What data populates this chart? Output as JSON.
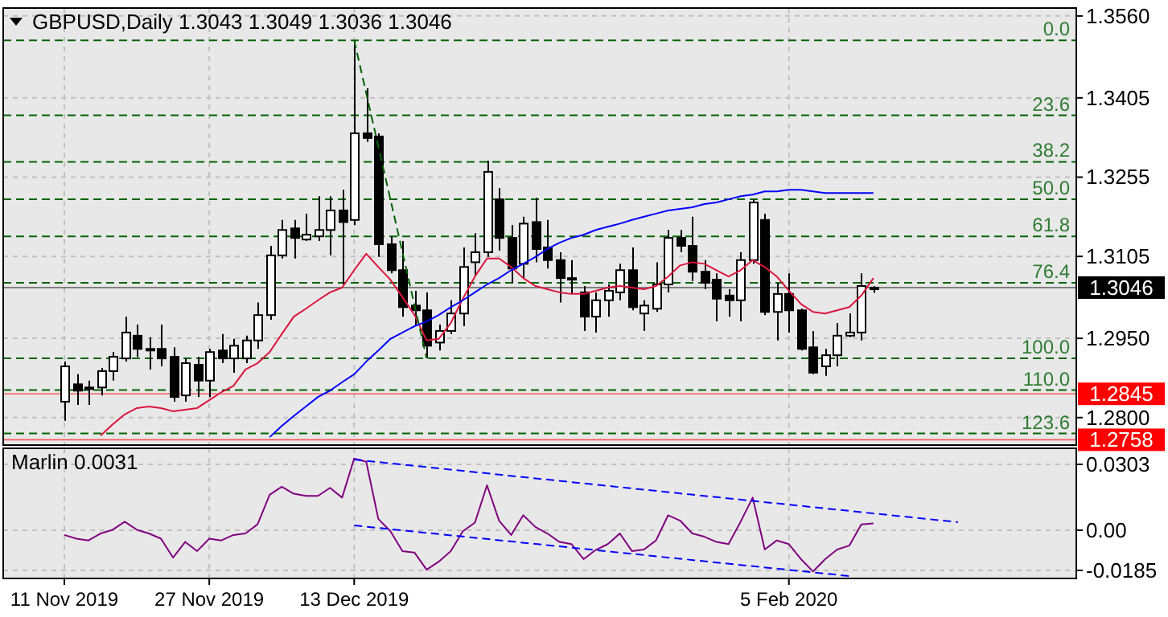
{
  "chart_data": [
    {
      "type": "candlestick",
      "title": "GBPUSD,Daily  1.3043 1.3049 1.3036 1.3046",
      "categories": [
        null,
        null,
        null,
        null,
        null,
        null,
        null,
        null,
        null,
        null,
        null,
        null,
        null,
        null,
        null,
        null,
        null,
        null,
        null,
        null,
        null,
        null,
        null,
        null,
        null,
        null,
        null,
        null,
        null,
        null,
        null,
        null,
        null,
        null,
        null,
        null,
        null,
        null,
        null,
        null,
        null,
        null,
        null,
        null,
        null,
        null,
        null,
        null,
        null,
        null,
        null,
        null,
        null,
        null,
        null,
        null,
        null,
        null,
        null,
        null,
        null,
        null,
        null,
        null,
        null,
        null,
        null,
        null,
        null,
        null,
        null,
        null,
        null,
        null,
        null,
        null,
        null,
        null,
        null,
        null,
        null,
        null,
        null,
        null
      ],
      "ohlc": [
        [
          1.283,
          1.2906,
          1.2794,
          1.2897
        ],
        [
          1.2863,
          1.2882,
          1.2824,
          1.2851
        ],
        [
          1.2857,
          1.287,
          1.2824,
          1.2854
        ],
        [
          1.2857,
          1.2894,
          1.2842,
          1.2888
        ],
        [
          1.2888,
          1.2924,
          1.287,
          1.2915
        ],
        [
          1.2912,
          1.2991,
          1.2906,
          1.2961
        ],
        [
          1.2955,
          1.2976,
          1.2915,
          1.293
        ],
        [
          1.293,
          1.2952,
          1.2891,
          1.2927
        ],
        [
          1.293,
          1.2976,
          1.2897,
          1.2912
        ],
        [
          1.2915,
          1.2933,
          1.283,
          1.2839
        ],
        [
          1.2842,
          1.2912,
          1.283,
          1.2903
        ],
        [
          1.29,
          1.2915,
          1.2839,
          1.287
        ],
        [
          1.287,
          1.293,
          1.2839,
          1.2924
        ],
        [
          1.2927,
          1.2958,
          1.2903,
          1.2912
        ],
        [
          1.2912,
          1.2949,
          1.2885,
          1.2936
        ],
        [
          1.2912,
          1.2955,
          1.2903,
          1.2946
        ],
        [
          1.2946,
          1.3018,
          1.293,
          1.2994
        ],
        [
          1.2994,
          1.3125,
          1.2985,
          1.3107
        ],
        [
          1.3107,
          1.3174,
          1.3101,
          1.3155
        ],
        [
          1.3158,
          1.3174,
          1.3101,
          1.314
        ],
        [
          1.3137,
          1.3186,
          1.3134,
          1.3146
        ],
        [
          1.3143,
          1.3219,
          1.3134,
          1.3155
        ],
        [
          1.3155,
          1.3219,
          1.3107,
          1.3192
        ],
        [
          1.3192,
          1.3231,
          1.3052,
          1.317
        ],
        [
          1.3174,
          1.3514,
          1.3164,
          1.3338
        ],
        [
          1.3338,
          1.3423,
          1.3322,
          1.3329
        ],
        [
          1.3332,
          1.3338,
          1.3104,
          1.3128
        ],
        [
          1.3128,
          1.3143,
          1.3073,
          1.3079
        ],
        [
          1.3079,
          1.3134,
          1.2991,
          1.3009
        ],
        [
          1.3012,
          1.304,
          1.2973,
          1.3003
        ],
        [
          1.3003,
          1.3037,
          1.2912,
          1.2936
        ],
        [
          1.2942,
          1.2976,
          1.2927,
          1.2964
        ],
        [
          1.2964,
          1.3022,
          1.2958,
          1.2997
        ],
        [
          1.2997,
          1.3122,
          1.2973,
          1.3085
        ],
        [
          1.3094,
          1.3149,
          1.3067,
          1.3113
        ],
        [
          1.3113,
          1.3286,
          1.3104,
          1.3265
        ],
        [
          1.3213,
          1.3234,
          1.3116,
          1.314
        ],
        [
          1.314,
          1.3164,
          1.3055,
          1.3082
        ],
        [
          1.3091,
          1.318,
          1.3064,
          1.3167
        ],
        [
          1.317,
          1.3216,
          1.3094,
          1.3119
        ],
        [
          1.3122,
          1.3174,
          1.3082,
          1.3098
        ],
        [
          1.3098,
          1.3113,
          1.3018,
          1.3064
        ],
        [
          1.3064,
          1.3098,
          1.3034,
          1.3061
        ],
        [
          1.3037,
          1.3049,
          1.2964,
          1.2991
        ],
        [
          1.2991,
          1.3037,
          1.2961,
          1.3022
        ],
        [
          1.3022,
          1.3052,
          1.2991,
          1.304
        ],
        [
          1.3037,
          1.3091,
          1.3022,
          1.3079
        ],
        [
          1.3079,
          1.3122,
          1.3003,
          1.3009
        ],
        [
          1.2997,
          1.3022,
          1.2964,
          1.3012
        ],
        [
          1.3006,
          1.3094,
          1.3,
          1.3052
        ],
        [
          1.3052,
          1.3155,
          1.3037,
          1.314
        ],
        [
          1.314,
          1.3155,
          1.3113,
          1.3125
        ],
        [
          1.3125,
          1.318,
          1.3058,
          1.3076
        ],
        [
          1.3076,
          1.3098,
          1.3043,
          1.3055
        ],
        [
          1.3061,
          1.3073,
          1.2982,
          1.3025
        ],
        [
          1.3031,
          1.3043,
          1.2991,
          1.3022
        ],
        [
          1.3022,
          1.3113,
          1.2982,
          1.3098
        ],
        [
          1.3098,
          1.3213,
          1.3091,
          1.3207
        ],
        [
          1.3174,
          1.3186,
          1.2994,
          1.3
        ],
        [
          1.3,
          1.3055,
          1.2946,
          1.3034
        ],
        [
          1.3034,
          1.3073,
          1.2961,
          1.3003
        ],
        [
          1.3003,
          1.3006,
          1.2927,
          1.293
        ],
        [
          1.2933,
          1.2964,
          1.2882,
          1.2885
        ],
        [
          1.2897,
          1.293,
          1.2879,
          1.2918
        ],
        [
          1.2918,
          1.2979,
          1.2897,
          1.2955
        ],
        [
          1.2955,
          1.2997,
          1.2952,
          1.2961
        ],
        [
          1.2961,
          1.3073,
          1.2946,
          1.3049
        ],
        [
          1.3043,
          1.3049,
          1.3036,
          1.3046
        ],
        null,
        null,
        null,
        null,
        null,
        null,
        null,
        null,
        null,
        null,
        null,
        null,
        null,
        null,
        null,
        null
      ],
      "series": [
        {
          "type": "line",
          "color": "#dc143c",
          "values": [
            null,
            null,
            null,
            1.2766,
            1.2787,
            1.2806,
            1.2818,
            1.2821,
            1.2818,
            1.2812,
            1.2815,
            1.2818,
            1.2833,
            1.2848,
            1.286,
            1.2891,
            1.2903,
            1.2924,
            1.2958,
            1.2991,
            1.3006,
            1.3022,
            1.3037,
            1.3046,
            1.3079,
            1.311,
            1.3085,
            1.3061,
            1.3028,
            1.2994,
            1.2946,
            1.2949,
            1.2979,
            1.3025,
            1.3067,
            1.3101,
            1.3101,
            1.3085,
            1.3064,
            1.3049,
            1.3043,
            1.3037,
            1.3034,
            1.3034,
            1.304,
            1.3046,
            1.3049,
            1.3046,
            1.3043,
            1.3049,
            1.3067,
            1.3088,
            1.3094,
            1.3091,
            1.3079,
            1.3067,
            1.3079,
            1.3098,
            1.3085,
            1.3067,
            1.304,
            1.3015,
            1.3,
            1.2997,
            1.3003,
            1.3009,
            1.3031,
            1.3064,
            null,
            null,
            null,
            null,
            null,
            null,
            null,
            null,
            null,
            null,
            null,
            null,
            null,
            null,
            null,
            null
          ]
        },
        {
          "type": "line",
          "color": "#0000ff",
          "values": [
            null,
            null,
            null,
            null,
            null,
            null,
            null,
            null,
            null,
            null,
            null,
            null,
            null,
            null,
            null,
            null,
            null,
            1.2763,
            1.2784,
            1.2803,
            1.2821,
            1.2839,
            1.2851,
            1.2867,
            1.2882,
            1.2906,
            1.2927,
            1.2949,
            1.2961,
            1.2973,
            1.2982,
            1.2994,
            1.3009,
            1.3022,
            1.3037,
            1.3052,
            1.3064,
            1.3079,
            1.3091,
            1.3104,
            1.3119,
            1.3131,
            1.314,
            1.3146,
            1.3155,
            1.3161,
            1.3167,
            1.3174,
            1.318,
            1.3186,
            1.3192,
            1.3195,
            1.3198,
            1.3204,
            1.3207,
            1.3213,
            1.3219,
            1.3222,
            1.3228,
            1.3228,
            1.3231,
            1.3231,
            1.3228,
            1.3225,
            1.3225,
            1.3225,
            1.3225,
            1.3225,
            null,
            null,
            null,
            null,
            null,
            null,
            null,
            null,
            null,
            null,
            null,
            null,
            null,
            null,
            null,
            null
          ]
        },
        {
          "type": "line",
          "color": "#006400",
          "line_style": "dashed",
          "values": [
            null,
            null,
            null,
            null,
            null,
            null,
            null,
            null,
            null,
            null,
            null,
            null,
            null,
            null,
            null,
            null,
            null,
            null,
            null,
            null,
            null,
            null,
            null,
            null,
            1.3514,
            null,
            null,
            null,
            null,
            null,
            1.2912,
            null,
            null,
            null,
            null,
            null,
            null,
            null,
            null,
            null,
            null,
            null,
            null,
            null,
            null,
            null,
            null,
            null,
            null,
            null,
            null,
            null,
            null,
            null,
            null,
            null,
            null,
            null,
            null,
            null,
            null,
            null,
            null,
            null,
            null,
            null,
            null,
            null,
            null,
            null,
            null,
            null,
            null,
            null,
            null,
            null,
            null,
            null,
            null,
            null,
            null,
            null,
            null,
            null
          ]
        }
      ],
      "ylim": [
        1.2748,
        1.3575
      ],
      "yticks": [
        {
          "value": 1.356,
          "label": "1.3560"
        },
        1.3405,
        1.3255,
        1.3105,
        {
          "value": 1.295,
          "label": "1.2950"
        },
        {
          "value": 1.28,
          "label": "1.2800"
        }
      ],
      "grid": true,
      "tick_labels": "y",
      "ref_lines": [
        {
          "axis": "y",
          "value": 1.3514,
          "color": "#006400",
          "line_style": "dashed"
        },
        {
          "axis": "y",
          "value": 1.3372,
          "color": "#006400",
          "line_style": "dashed"
        },
        {
          "axis": "y",
          "value": 1.3284,
          "color": "#006400",
          "line_style": "dashed"
        },
        {
          "axis": "y",
          "value": 1.3213,
          "color": "#006400",
          "line_style": "dashed"
        },
        {
          "axis": "y",
          "value": 1.3143,
          "color": "#006400",
          "line_style": "dashed"
        },
        {
          "axis": "y",
          "value": 1.3055,
          "color": "#006400",
          "line_style": "dashed"
        },
        {
          "axis": "y",
          "value": 1.2912,
          "color": "#006400",
          "line_style": "dashed"
        },
        {
          "axis": "y",
          "value": 1.2852,
          "color": "#006400",
          "line_style": "dashed"
        },
        {
          "axis": "y",
          "value": 1.277,
          "color": "#006400",
          "line_style": "dashed"
        },
        {
          "axis": "y",
          "value": 1.3046,
          "label": "1.3046",
          "color": "#000000",
          "line_style": "solid"
        },
        {
          "axis": "y",
          "value": 1.2845,
          "label": "1.2845",
          "color": "#ff0000",
          "line_style": "solid"
        },
        {
          "axis": "y",
          "value": 1.2758,
          "label": "1.2758",
          "color": "#ff0000",
          "line_style": "solid"
        }
      ],
      "annotations": [
        {
          "text": "0.0",
          "y": 1.3514
        },
        {
          "text": "23.6",
          "y": 1.3372
        },
        {
          "text": "38.2",
          "y": 1.3284
        },
        {
          "text": "50.0",
          "y": 1.3213
        },
        {
          "text": "61.8",
          "y": 1.3143
        },
        {
          "text": "76.4",
          "y": 1.3055
        },
        {
          "text": "100.0",
          "y": 1.2912
        },
        {
          "text": "110.0",
          "y": 1.2852
        },
        {
          "text": "123.6",
          "y": 1.277
        }
      ]
    },
    {
      "type": "line",
      "title": "Marlin 0.0031",
      "categories": [
        "11 Nov 2019",
        null,
        null,
        null,
        null,
        null,
        null,
        null,
        null,
        null,
        null,
        null,
        "27 Nov 2019",
        null,
        null,
        null,
        null,
        null,
        null,
        null,
        null,
        null,
        null,
        null,
        "13 Dec 2019",
        null,
        null,
        null,
        null,
        null,
        null,
        null,
        null,
        null,
        null,
        null,
        null,
        null,
        null,
        null,
        null,
        null,
        null,
        null,
        null,
        null,
        null,
        null,
        null,
        null,
        null,
        null,
        null,
        null,
        null,
        null,
        null,
        null,
        null,
        null,
        "5 Feb 2020",
        null,
        null,
        null,
        null,
        null,
        null,
        null,
        null,
        null,
        null,
        null,
        null,
        null,
        null,
        null,
        null,
        null,
        null,
        null,
        null,
        null,
        null,
        null
      ],
      "series": [
        {
          "color": "#800080",
          "values": [
            -0.0022,
            -0.0039,
            -0.0047,
            -0.0015,
            0.0002,
            0.0039,
            0.0002,
            -0.0015,
            -0.0039,
            -0.0126,
            -0.0054,
            -0.0096,
            -0.0039,
            -0.0047,
            -0.0022,
            -0.0015,
            0.0027,
            0.0163,
            0.02,
            0.0168,
            0.0158,
            0.0158,
            0.0195,
            0.015,
            0.033,
            0.0315,
            0.0052,
            -0.0005,
            -0.0096,
            -0.0103,
            -0.0182,
            -0.0145,
            -0.0096,
            -0.0005,
            0.0035,
            0.0207,
            0.0044,
            -0.0022,
            0.0069,
            0.0015,
            -0.0015,
            -0.0054,
            -0.0064,
            -0.0133,
            -0.0091,
            -0.0064,
            -0.0015,
            -0.0096,
            -0.0089,
            -0.0047,
            0.0069,
            0.0044,
            -0.0015,
            -0.003,
            -0.0054,
            -0.0064,
            0.0039,
            0.015,
            -0.0089,
            -0.0047,
            -0.0064,
            -0.0133,
            -0.019,
            -0.0133,
            -0.0089,
            -0.0071,
            0.0027,
            0.0031,
            null,
            null,
            null,
            null,
            null,
            null,
            null,
            null,
            null,
            null,
            null,
            null,
            null,
            null,
            null,
            null
          ]
        },
        {
          "color": "#0000ff",
          "line_style": "dashed",
          "values": [
            null,
            null,
            null,
            null,
            null,
            null,
            null,
            null,
            null,
            null,
            null,
            null,
            null,
            null,
            null,
            null,
            null,
            null,
            null,
            null,
            null,
            null,
            null,
            null,
            0.0325,
            null,
            null,
            null,
            null,
            null,
            null,
            null,
            null,
            null,
            null,
            null,
            null,
            null,
            null,
            null,
            null,
            null,
            null,
            null,
            null,
            null,
            null,
            null,
            null,
            null,
            null,
            null,
            null,
            null,
            null,
            null,
            null,
            null,
            null,
            null,
            null,
            null,
            null,
            null,
            null,
            null,
            null,
            null,
            null,
            null,
            null,
            null,
            null,
            null,
            0.0037,
            null,
            null,
            null,
            null,
            null,
            null,
            null,
            null,
            null
          ]
        },
        {
          "color": "#0000ff",
          "line_style": "dashed",
          "values": [
            null,
            null,
            null,
            null,
            null,
            null,
            null,
            null,
            null,
            null,
            null,
            null,
            null,
            null,
            null,
            null,
            null,
            null,
            null,
            null,
            null,
            null,
            null,
            null,
            0.0022,
            null,
            null,
            null,
            null,
            null,
            null,
            null,
            null,
            null,
            null,
            null,
            null,
            null,
            null,
            null,
            null,
            null,
            null,
            null,
            null,
            null,
            null,
            null,
            null,
            null,
            null,
            null,
            null,
            null,
            null,
            null,
            null,
            null,
            null,
            null,
            null,
            null,
            null,
            null,
            null,
            -0.0211,
            null,
            null,
            null,
            null,
            null,
            null,
            null,
            null,
            null,
            null,
            null,
            null,
            null,
            null,
            null,
            null,
            null,
            null
          ]
        }
      ],
      "ylim": [
        -0.0222,
        0.0377
      ],
      "yticks": [
        0.0303,
        {
          "value": 0,
          "label": "0.00"
        },
        -0.0185
      ],
      "grid": true
    }
  ]
}
